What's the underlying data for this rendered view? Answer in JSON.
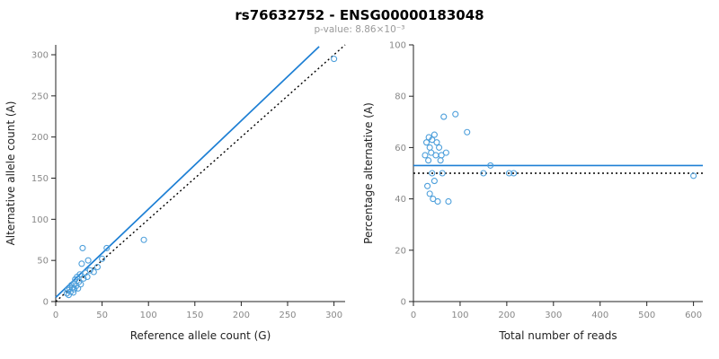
{
  "header": {
    "title": "rs76632752 - ENSG00000183048",
    "subtitle": "p-value: 8.86×10⁻³"
  },
  "colors": {
    "point": "#4d9fdb",
    "line": "#1d7fd4",
    "dash": "#000000",
    "axis": "#222222",
    "tick_text": "#888888",
    "label_text": "#222222"
  },
  "chart_data": [
    {
      "type": "scatter",
      "xlabel": "Reference allele count (G)",
      "ylabel": "Alternative allele count (A)",
      "xlim": [
        0,
        312
      ],
      "ylim": [
        0,
        312
      ],
      "xticks": [
        0,
        50,
        100,
        150,
        200,
        250,
        300
      ],
      "yticks": [
        0,
        50,
        100,
        150,
        200,
        250,
        300
      ],
      "grid": false,
      "legend": "none",
      "points": [
        [
          12,
          10
        ],
        [
          13,
          14
        ],
        [
          14,
          8
        ],
        [
          15,
          16
        ],
        [
          16,
          12
        ],
        [
          17,
          20
        ],
        [
          18,
          17
        ],
        [
          19,
          11
        ],
        [
          20,
          22
        ],
        [
          20,
          15
        ],
        [
          21,
          27
        ],
        [
          22,
          19
        ],
        [
          23,
          30
        ],
        [
          24,
          16
        ],
        [
          25,
          24
        ],
        [
          26,
          33
        ],
        [
          27,
          21
        ],
        [
          28,
          46
        ],
        [
          29,
          65
        ],
        [
          30,
          28
        ],
        [
          32,
          35
        ],
        [
          34,
          30
        ],
        [
          35,
          50
        ],
        [
          37,
          38
        ],
        [
          41,
          36
        ],
        [
          45,
          42
        ],
        [
          50,
          52
        ],
        [
          55,
          65
        ],
        [
          95,
          75
        ],
        [
          300,
          295
        ]
      ],
      "lines": [
        {
          "name": "regression-line",
          "x1": 0,
          "y1": 5,
          "x2": 284,
          "y2": 310,
          "style": "solid",
          "color_key": "line"
        },
        {
          "name": "identity-line",
          "x1": 0,
          "y1": 0,
          "x2": 312,
          "y2": 312,
          "style": "dashed",
          "color_key": "dash"
        }
      ]
    },
    {
      "type": "scatter",
      "xlabel": "Total number of reads",
      "ylabel": "Percentage alternative (A)",
      "xlim": [
        0,
        620
      ],
      "ylim": [
        0,
        100
      ],
      "xticks": [
        0,
        100,
        200,
        300,
        400,
        500,
        600
      ],
      "yticks": [
        0,
        20,
        40,
        60,
        80,
        100
      ],
      "grid": false,
      "legend": "none",
      "points": [
        [
          25,
          57
        ],
        [
          28,
          62
        ],
        [
          30,
          45
        ],
        [
          32,
          55
        ],
        [
          33,
          64
        ],
        [
          35,
          60
        ],
        [
          35,
          42
        ],
        [
          38,
          58
        ],
        [
          40,
          63
        ],
        [
          40,
          50
        ],
        [
          42,
          40
        ],
        [
          45,
          65
        ],
        [
          45,
          47
        ],
        [
          48,
          57
        ],
        [
          50,
          62
        ],
        [
          52,
          39
        ],
        [
          55,
          60
        ],
        [
          58,
          55
        ],
        [
          60,
          57
        ],
        [
          62,
          50
        ],
        [
          65,
          72
        ],
        [
          70,
          58
        ],
        [
          75,
          39
        ],
        [
          90,
          73
        ],
        [
          115,
          66
        ],
        [
          150,
          50
        ],
        [
          165,
          53
        ],
        [
          205,
          50
        ],
        [
          215,
          50
        ],
        [
          600,
          49
        ]
      ],
      "lines": [
        {
          "name": "mean-line",
          "x1": 0,
          "y1": 53,
          "x2": 620,
          "y2": 53,
          "style": "solid",
          "color_key": "line"
        },
        {
          "name": "expected-line",
          "x1": 0,
          "y1": 50,
          "x2": 620,
          "y2": 50,
          "style": "dashed",
          "color_key": "dash"
        }
      ]
    }
  ]
}
